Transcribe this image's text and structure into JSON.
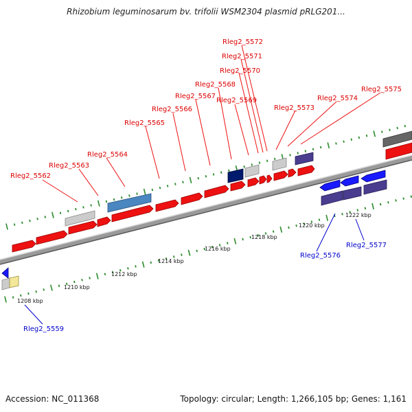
{
  "title": "Rhizobium leguminosarum bv. trifolii WSM2304 plasmid pRLG201...",
  "footer": {
    "accession": "Accession: NC_011368",
    "topology": "Topology: circular; Length: 1,266,105 bp; Genes: 1,161"
  },
  "colors": {
    "forward_gene": "#ee1111",
    "reverse_gene": "#1a1aff",
    "forward_label": "#dd0000",
    "reverse_label": "#0000cc",
    "backbone": "#888888",
    "tick": "#2a8a2a"
  },
  "scale_labels": [
    "1208 kbp",
    "1210 kbp",
    "1212 kbp",
    "1214 kbp",
    "1216 kbp",
    "1218 kbp",
    "1220 kbp",
    "1222 kbp"
  ],
  "forward_gene_labels": [
    "Rleg2_5562",
    "Rleg2_5563",
    "Rleg2_5564",
    "Rleg2_5565",
    "Rleg2_5566",
    "Rleg2_5567",
    "Rleg2_5568",
    "Rleg2_5569",
    "Rleg2_5570",
    "Rleg2_5571",
    "Rleg2_5572",
    "Rleg2_5573",
    "Rleg2_5574",
    "Rleg2_5575"
  ],
  "reverse_gene_labels": [
    "Rleg2_5559",
    "Rleg2_5576",
    "Rleg2_5577"
  ]
}
